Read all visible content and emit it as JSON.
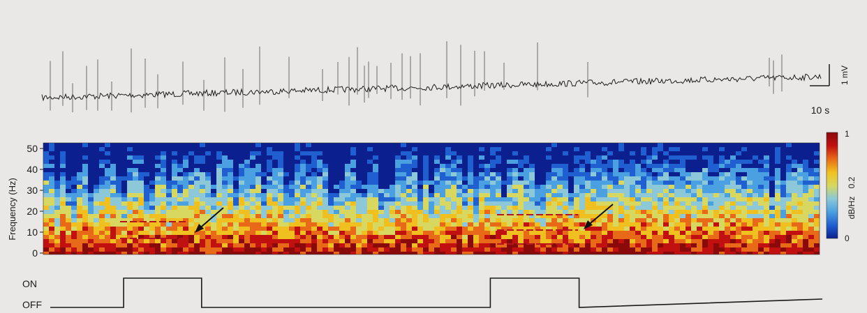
{
  "trace": {
    "scale_bar_amplitude": "1 mV",
    "scale_bar_time": "10 s"
  },
  "spectrogram": {
    "y_axis_label": "Frequency (Hz)",
    "y_ticks": [
      "50",
      "40",
      "30",
      "20",
      "10",
      "0"
    ],
    "y_max_hz": 50,
    "colorbar": {
      "label": "dB/Hz",
      "max_label": "1",
      "mid_label": "0.2",
      "min_label": "0",
      "colors": [
        "#0b1f8f",
        "#1f5fd0",
        "#4aa0e0",
        "#8cc8d8",
        "#d8d860",
        "#f0c020",
        "#e86a18",
        "#c01010",
        "#8a0a0a"
      ]
    },
    "annotation_arrows": 2
  },
  "stimulus": {
    "on_label": "ON",
    "off_label": "OFF",
    "on_periods_fraction": [
      [
        0.095,
        0.196
      ],
      [
        0.57,
        0.685
      ]
    ]
  }
}
